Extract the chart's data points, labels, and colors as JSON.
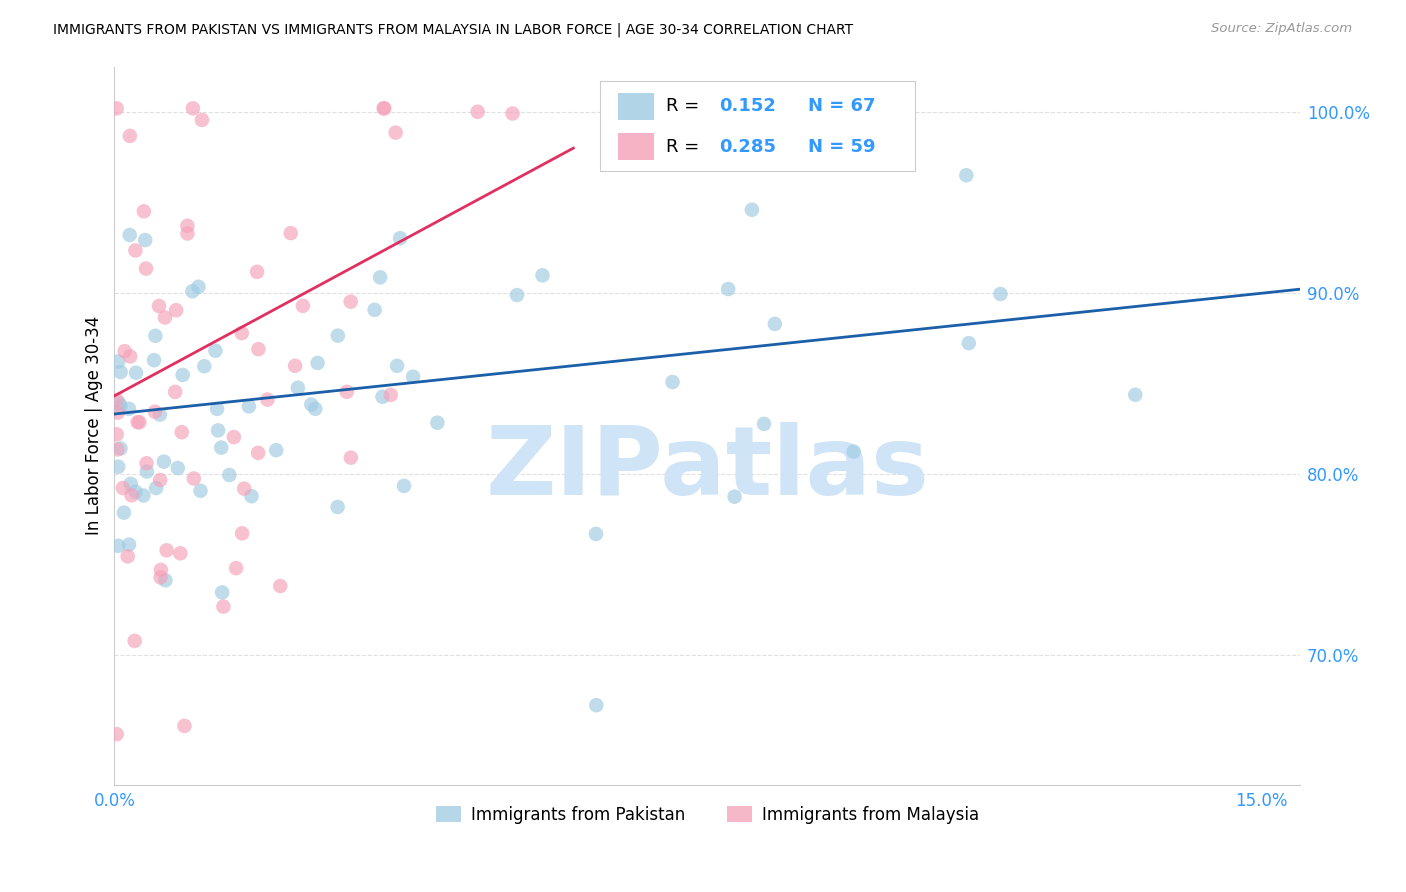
{
  "title": "IMMIGRANTS FROM PAKISTAN VS IMMIGRANTS FROM MALAYSIA IN LABOR FORCE | AGE 30-34 CORRELATION CHART",
  "source": "Source: ZipAtlas.com",
  "ylabel": "In Labor Force | Age 30-34",
  "xlim": [
    0.0,
    0.155
  ],
  "ylim": [
    0.628,
    1.025
  ],
  "R_pakistan": 0.152,
  "N_pakistan": 67,
  "R_malaysia": 0.285,
  "N_malaysia": 59,
  "color_pakistan": "#9ecae1",
  "color_malaysia": "#f4a0b8",
  "line_color_pakistan": "#1a5fa8",
  "line_color_malaysia": "#e03060",
  "watermark": "ZIPatlas",
  "watermark_color": "#d0e4f7",
  "grid_color": "#dddddd",
  "tick_color": "#3399ff",
  "yticks": [
    0.7,
    0.8,
    0.9,
    1.0
  ],
  "yticklabels": [
    "70.0%",
    "80.0%",
    "90.0%",
    "100.0%"
  ],
  "xtick_positions": [
    0.0,
    0.03,
    0.06,
    0.09,
    0.12,
    0.15
  ],
  "xticklabels": [
    "0.0%",
    "",
    "",
    "",
    "",
    "15.0%"
  ],
  "pak_line_x": [
    0.0,
    0.155
  ],
  "pak_line_y": [
    0.833,
    0.902
  ],
  "mal_line_x": [
    0.0,
    0.06
  ],
  "mal_line_y": [
    0.843,
    0.98
  ]
}
